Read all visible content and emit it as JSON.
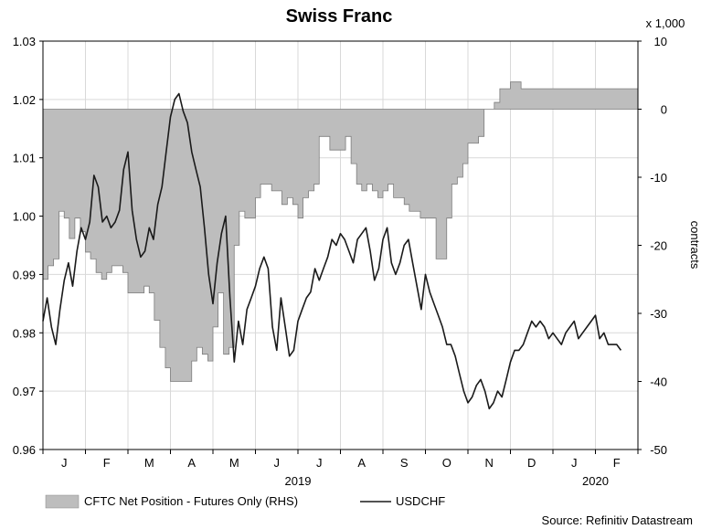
{
  "chart_data": {
    "type": "line",
    "title": "Swiss Franc",
    "source": "Source: Refinitiv Datastream",
    "left_axis": {
      "series": "USDCHF",
      "ylim": [
        0.96,
        1.03
      ],
      "ticks": [
        "1.03",
        "1.02",
        "1.01",
        "1.00",
        "0.99",
        "0.98",
        "0.97",
        "0.96"
      ],
      "tick_values": [
        1.03,
        1.02,
        1.01,
        1.0,
        0.99,
        0.98,
        0.97,
        0.96
      ]
    },
    "right_axis": {
      "series": "CFTC Net Position - Futures Only (RHS)",
      "label": "contracts",
      "multiplier": "x 1,000",
      "ylim": [
        -50,
        10
      ],
      "ticks": [
        "10",
        "0",
        "-10",
        "-20",
        "-30",
        "-40",
        "-50"
      ],
      "tick_values": [
        10,
        0,
        -10,
        -20,
        -30,
        -40,
        -50
      ]
    },
    "x_months": [
      "J",
      "F",
      "M",
      "A",
      "M",
      "J",
      "J",
      "A",
      "S",
      "O",
      "N",
      "D",
      "J",
      "F"
    ],
    "year_labels": [
      {
        "label": "2019",
        "at_month": 5.5
      },
      {
        "label": "2020",
        "at_month": 12.5
      }
    ],
    "legend": [
      "CFTC Net Position - Futures Only (RHS)",
      "USDCHF"
    ],
    "series": [
      {
        "name": "CFTC Net Position - Futures Only (RHS)",
        "kind": "area-step",
        "x": [
          0,
          0.12,
          0.25,
          0.38,
          0.5,
          0.62,
          0.75,
          0.88,
          1.0,
          1.12,
          1.25,
          1.38,
          1.5,
          1.62,
          1.75,
          1.88,
          2.0,
          2.12,
          2.25,
          2.38,
          2.5,
          2.62,
          2.75,
          2.88,
          3.0,
          3.12,
          3.25,
          3.38,
          3.5,
          3.62,
          3.75,
          3.88,
          4.0,
          4.12,
          4.25,
          4.38,
          4.5,
          4.62,
          4.75,
          4.88,
          5.0,
          5.12,
          5.25,
          5.38,
          5.5,
          5.62,
          5.75,
          5.88,
          6.0,
          6.12,
          6.25,
          6.38,
          6.5,
          6.62,
          6.75,
          6.88,
          7.0,
          7.12,
          7.25,
          7.38,
          7.5,
          7.62,
          7.75,
          7.88,
          8.0,
          8.12,
          8.25,
          8.38,
          8.5,
          8.62,
          8.75,
          8.88,
          9.0,
          9.12,
          9.25,
          9.38,
          9.5,
          9.62,
          9.75,
          9.88,
          10.0,
          10.12,
          10.25,
          10.38,
          10.5,
          10.62,
          10.75,
          10.88,
          11.0,
          11.12,
          11.25,
          11.38,
          11.5,
          11.62,
          11.75,
          11.88,
          12.0,
          12.12,
          12.25,
          12.38,
          12.5,
          12.62,
          12.75,
          12.88,
          13.0,
          13.12,
          13.25,
          13.38,
          13.5,
          13.62
        ],
        "values": [
          -25,
          -23,
          -22,
          -15,
          -16,
          -19,
          -16,
          -18,
          -21,
          -22,
          -24,
          -25,
          -24,
          -23,
          -23,
          -24,
          -27,
          -27,
          -27,
          -26,
          -27,
          -31,
          -35,
          -38,
          -40,
          -40,
          -40,
          -40,
          -37,
          -35,
          -36,
          -37,
          -32,
          -27,
          -36,
          -35,
          -20,
          -15,
          -16,
          -16,
          -13,
          -11,
          -11,
          -12,
          -12,
          -14,
          -13,
          -14,
          -16,
          -13,
          -12,
          -11,
          -4,
          -4,
          -6,
          -6,
          -6,
          -4,
          -8,
          -11,
          -12,
          -11,
          -12,
          -13,
          -12,
          -11,
          -13,
          -13,
          -14,
          -15,
          -15,
          -16,
          -16,
          -16,
          -22,
          -22,
          -16,
          -11,
          -10,
          -8,
          -5,
          -5,
          -4,
          0,
          0,
          1,
          3,
          3,
          4,
          4,
          3,
          3,
          3,
          3,
          3,
          3,
          3,
          3,
          3,
          3,
          3,
          3,
          3,
          3,
          3,
          3,
          3,
          3,
          3,
          3
        ]
      },
      {
        "name": "USDCHF",
        "kind": "line",
        "x": [
          0,
          0.1,
          0.2,
          0.3,
          0.4,
          0.5,
          0.6,
          0.7,
          0.8,
          0.9,
          1.0,
          1.1,
          1.2,
          1.3,
          1.4,
          1.5,
          1.6,
          1.7,
          1.8,
          1.9,
          2.0,
          2.1,
          2.2,
          2.3,
          2.4,
          2.5,
          2.6,
          2.7,
          2.8,
          2.9,
          3.0,
          3.1,
          3.2,
          3.3,
          3.4,
          3.5,
          3.6,
          3.7,
          3.8,
          3.9,
          4.0,
          4.1,
          4.2,
          4.3,
          4.4,
          4.5,
          4.6,
          4.7,
          4.8,
          4.9,
          5.0,
          5.1,
          5.2,
          5.3,
          5.4,
          5.5,
          5.6,
          5.7,
          5.8,
          5.9,
          6.0,
          6.1,
          6.2,
          6.3,
          6.4,
          6.5,
          6.6,
          6.7,
          6.8,
          6.9,
          7.0,
          7.1,
          7.2,
          7.3,
          7.4,
          7.5,
          7.6,
          7.7,
          7.8,
          7.9,
          8.0,
          8.1,
          8.2,
          8.3,
          8.4,
          8.5,
          8.6,
          8.7,
          8.8,
          8.9,
          9.0,
          9.1,
          9.2,
          9.3,
          9.4,
          9.5,
          9.6,
          9.7,
          9.8,
          9.9,
          10.0,
          10.1,
          10.2,
          10.3,
          10.4,
          10.5,
          10.6,
          10.7,
          10.8,
          10.9,
          11.0,
          11.1,
          11.2,
          11.3,
          11.4,
          11.5,
          11.6,
          11.7,
          11.8,
          11.9,
          12.0,
          12.1,
          12.2,
          12.3,
          12.4,
          12.5,
          12.6,
          12.7,
          12.8,
          12.9,
          13.0,
          13.1,
          13.2,
          13.3,
          13.4,
          13.5,
          13.6
        ],
        "values": [
          0.982,
          0.986,
          0.981,
          0.978,
          0.984,
          0.989,
          0.992,
          0.988,
          0.994,
          0.998,
          0.996,
          0.999,
          1.007,
          1.005,
          0.999,
          1.0,
          0.998,
          0.999,
          1.001,
          1.008,
          1.011,
          1.001,
          0.996,
          0.993,
          0.994,
          0.998,
          0.996,
          1.002,
          1.005,
          1.011,
          1.017,
          1.02,
          1.021,
          1.018,
          1.016,
          1.011,
          1.008,
          1.005,
          0.998,
          0.99,
          0.985,
          0.992,
          0.997,
          1.0,
          0.986,
          0.975,
          0.982,
          0.978,
          0.984,
          0.986,
          0.988,
          0.991,
          0.993,
          0.991,
          0.981,
          0.977,
          0.986,
          0.981,
          0.976,
          0.977,
          0.982,
          0.984,
          0.986,
          0.987,
          0.991,
          0.989,
          0.991,
          0.993,
          0.996,
          0.995,
          0.997,
          0.996,
          0.994,
          0.992,
          0.996,
          0.997,
          0.998,
          0.994,
          0.989,
          0.991,
          0.996,
          0.998,
          0.992,
          0.99,
          0.992,
          0.995,
          0.996,
          0.992,
          0.988,
          0.984,
          0.99,
          0.987,
          0.985,
          0.983,
          0.981,
          0.978,
          0.978,
          0.976,
          0.973,
          0.97,
          0.968,
          0.969,
          0.971,
          0.972,
          0.97,
          0.967,
          0.968,
          0.97,
          0.969,
          0.972,
          0.975,
          0.977,
          0.977,
          0.978,
          0.98,
          0.982,
          0.981,
          0.982,
          0.981,
          0.979,
          0.98,
          0.979,
          0.978,
          0.98,
          0.981,
          0.982,
          0.979,
          0.98,
          0.981,
          0.982,
          0.983,
          0.979,
          0.98,
          0.978,
          0.978,
          0.978,
          0.977
        ]
      }
    ]
  },
  "colors": {
    "area_fill": "#bdbdbd",
    "area_stroke": "#7d7d7d",
    "line": "#1a1a1a",
    "grid": "#d9d9d9",
    "axis": "#000000"
  }
}
